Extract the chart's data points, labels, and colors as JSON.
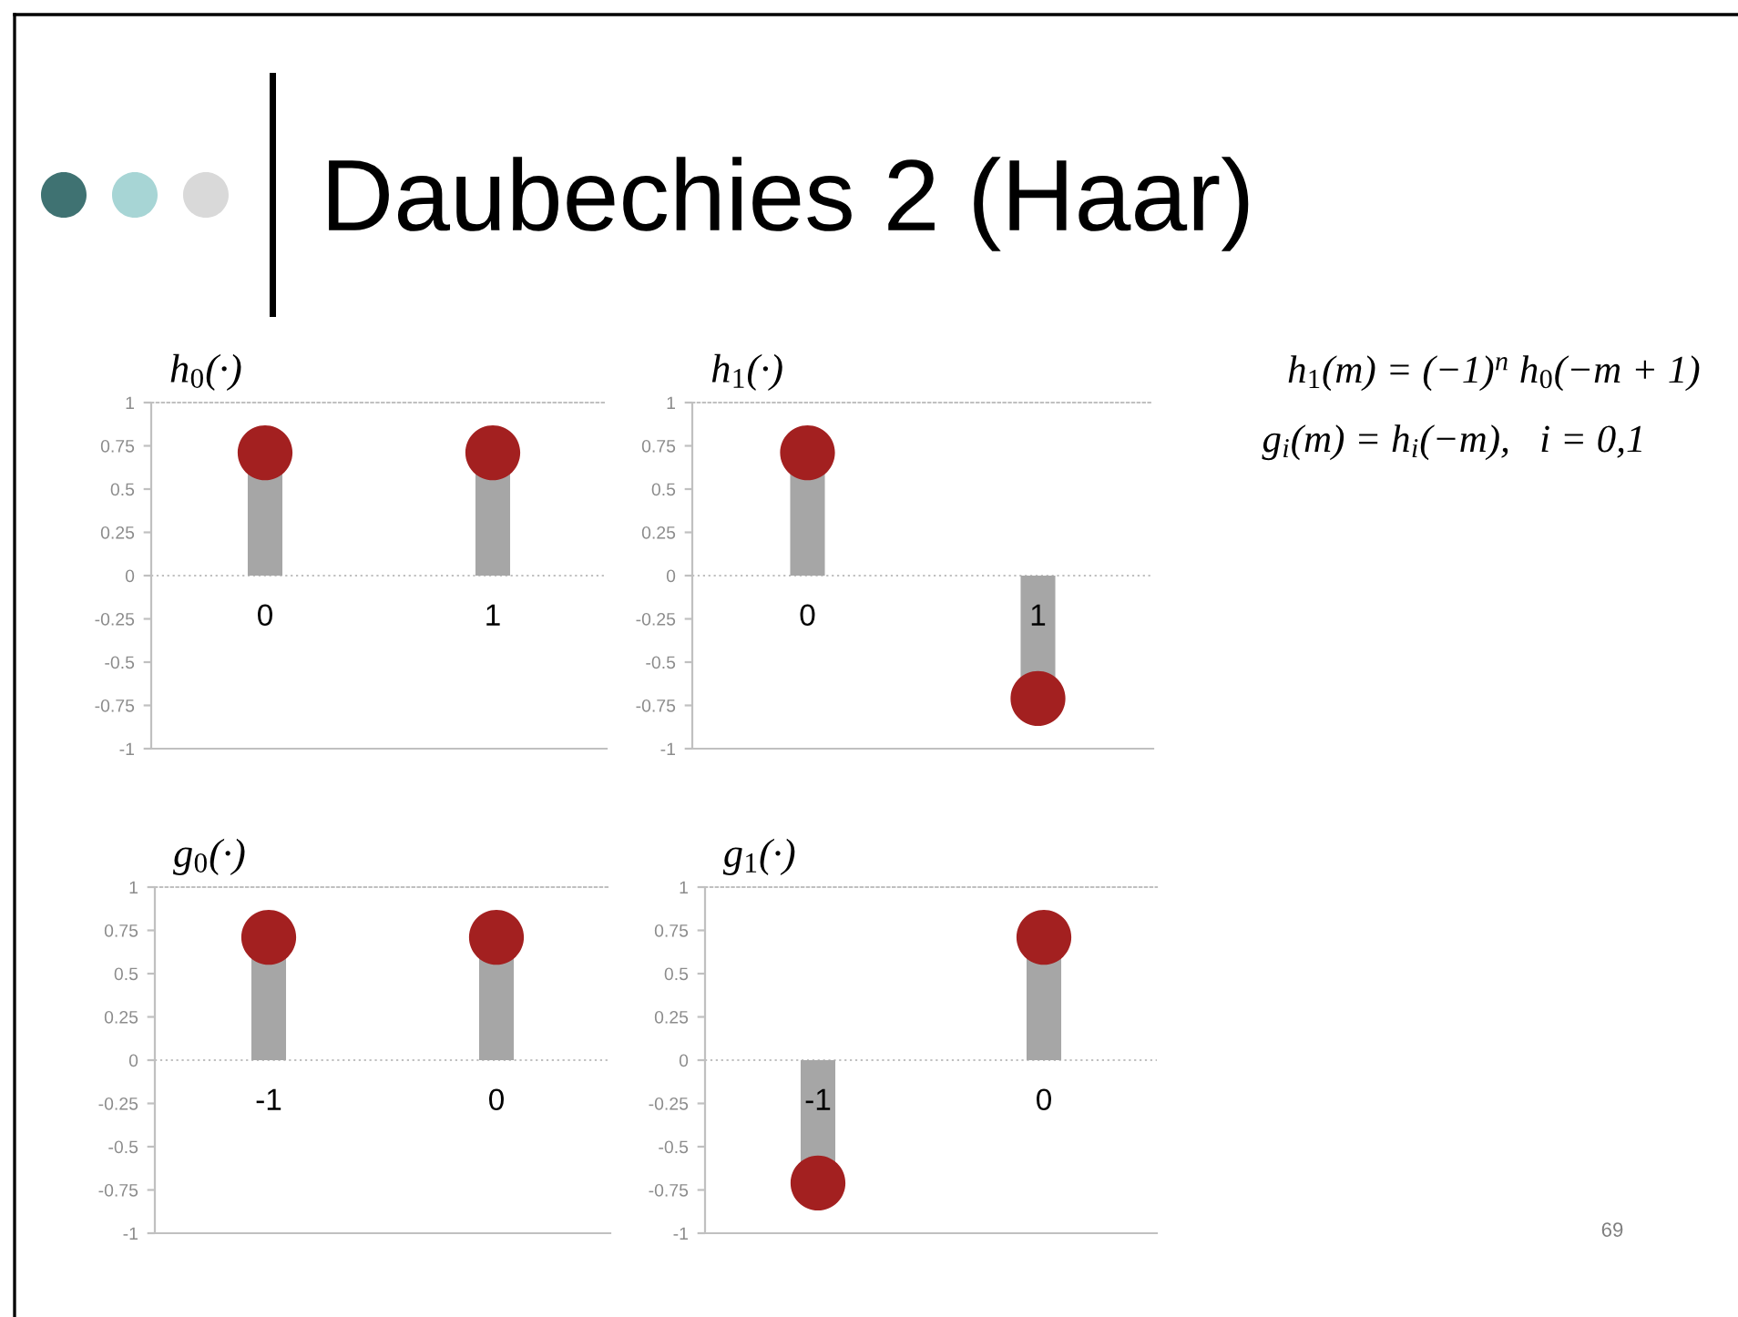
{
  "chart_data": [
    {
      "type": "other",
      "title": "Daubechies 2 (Haar)",
      "annotations": [
        "h$_{1}$(m) = (−1)$^{n}$ h$_{0}$(−m + 1)",
        "g$_{i}$(m) = h$_{i}$(−m),   i = 0,1",
        "69"
      ]
    },
    {
      "type": "lollipop",
      "title": "h$_{0}$(·)",
      "categories": [
        "0",
        "1"
      ],
      "series": [
        {
          "color": "#a32020",
          "values": [
            0.71,
            0.71
          ]
        }
      ],
      "ylim": [
        -1,
        1
      ],
      "yticks": [
        -1,
        -0.75,
        -0.5,
        -0.25,
        0,
        0.25,
        0.5,
        0.75,
        1
      ],
      "ref_lines": [
        {
          "axis": "y",
          "value": 0,
          "line_style": "dotted",
          "color": "#c0c0c0"
        }
      ],
      "marker": "circle"
    },
    {
      "type": "lollipop",
      "title": "h$_{1}$(·)",
      "categories": [
        "0",
        "1"
      ],
      "series": [
        {
          "color": "#a32020",
          "values": [
            0.71,
            -0.71
          ]
        }
      ],
      "ylim": [
        -1,
        1
      ],
      "yticks": [
        -1,
        -0.75,
        -0.5,
        -0.25,
        0,
        0.25,
        0.5,
        0.75,
        1
      ],
      "ref_lines": [
        {
          "axis": "y",
          "value": 0,
          "line_style": "dotted",
          "color": "#c0c0c0"
        }
      ],
      "marker": "circle"
    },
    {
      "type": "lollipop",
      "title": "g$_{0}$(·)",
      "categories": [
        "-1",
        "0"
      ],
      "series": [
        {
          "color": "#a32020",
          "values": [
            0.71,
            0.71
          ]
        }
      ],
      "ylim": [
        -1,
        1
      ],
      "yticks": [
        -1,
        -0.75,
        -0.5,
        -0.25,
        0,
        0.25,
        0.5,
        0.75,
        1
      ],
      "ref_lines": [
        {
          "axis": "y",
          "value": 0,
          "line_style": "dotted",
          "color": "#c0c0c0"
        }
      ],
      "marker": "circle"
    },
    {
      "type": "lollipop",
      "title": "g$_{1}$(·)",
      "categories": [
        "-1",
        "0"
      ],
      "series": [
        {
          "color": "#a32020",
          "values": [
            -0.71,
            0.71
          ]
        }
      ],
      "ylim": [
        -1,
        1
      ],
      "yticks": [
        -1,
        -0.75,
        -0.5,
        -0.25,
        0,
        0.25,
        0.5,
        0.75,
        1
      ],
      "ref_lines": [
        {
          "axis": "y",
          "value": 0,
          "line_style": "dotted",
          "color": "#c0c0c0"
        }
      ],
      "marker": "circle"
    }
  ]
}
